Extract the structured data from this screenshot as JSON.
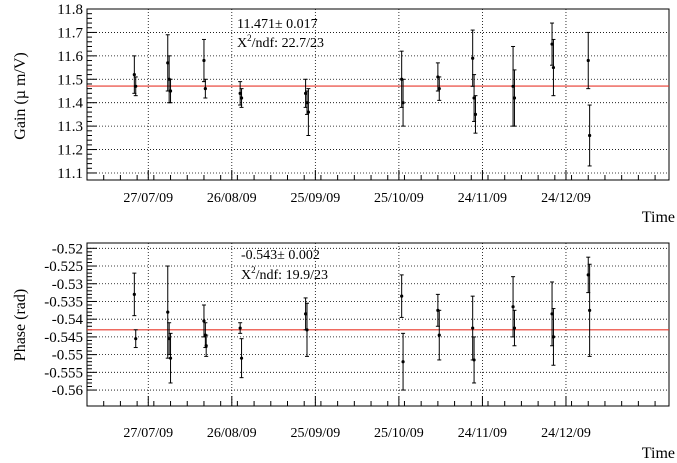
{
  "chart_data": [
    {
      "type": "scatter",
      "ylabel": "Gain (µ m/V)",
      "xlabel": "Time",
      "ylim": [
        11.07,
        11.8
      ],
      "yticks": [
        "11.1",
        "11.2",
        "11.3",
        "11.4",
        "11.5",
        "11.6",
        "11.7",
        "11.8"
      ],
      "xticks": [
        "27/07/09",
        "26/08/09",
        "25/09/09",
        "25/10/09",
        "24/11/09",
        "24/12/09"
      ],
      "xtick_days": [
        0,
        30,
        60,
        90,
        120,
        150
      ],
      "xlim_days": [
        -22,
        187
      ],
      "grid": true,
      "fit": {
        "value": 11.471,
        "label_value": "11.471± 0.017",
        "label_chi_prefix": "X",
        "label_chi_sup": "2",
        "label_chi_rest": "/ndf: 22.7/23",
        "line_color": "#e8382c"
      },
      "points": [
        {
          "x": -5,
          "y": 11.52,
          "err": 0.08
        },
        {
          "x": -4.5,
          "y": 11.47,
          "err": 0.04
        },
        {
          "x": 7,
          "y": 11.57,
          "err": 0.12
        },
        {
          "x": 7.5,
          "y": 11.5,
          "err": 0.1
        },
        {
          "x": 8,
          "y": 11.45,
          "err": 0.05
        },
        {
          "x": 20,
          "y": 11.58,
          "err": 0.09
        },
        {
          "x": 20.5,
          "y": 11.46,
          "err": 0.04
        },
        {
          "x": 33,
          "y": 11.44,
          "err": 0.05
        },
        {
          "x": 33.5,
          "y": 11.42,
          "err": 0.04
        },
        {
          "x": 56.5,
          "y": 11.44,
          "err": 0.06
        },
        {
          "x": 57,
          "y": 11.4,
          "err": 0.05
        },
        {
          "x": 57.5,
          "y": 11.36,
          "err": 0.1
        },
        {
          "x": 91,
          "y": 11.5,
          "err": 0.12
        },
        {
          "x": 91.5,
          "y": 11.4,
          "err": 0.1
        },
        {
          "x": 104,
          "y": 11.51,
          "err": 0.06
        },
        {
          "x": 104.5,
          "y": 11.46,
          "err": 0.05
        },
        {
          "x": 116.5,
          "y": 11.59,
          "err": 0.12
        },
        {
          "x": 117,
          "y": 11.42,
          "err": 0.1
        },
        {
          "x": 117.5,
          "y": 11.35,
          "err": 0.08
        },
        {
          "x": 131,
          "y": 11.47,
          "err": 0.17
        },
        {
          "x": 131.5,
          "y": 11.42,
          "err": 0.12
        },
        {
          "x": 145,
          "y": 11.65,
          "err": 0.09
        },
        {
          "x": 145.5,
          "y": 11.55,
          "err": 0.12
        },
        {
          "x": 158,
          "y": 11.58,
          "err": 0.12
        },
        {
          "x": 158.5,
          "y": 11.26,
          "err": 0.13
        }
      ]
    },
    {
      "type": "scatter",
      "ylabel": "Phase (rad)",
      "xlabel": "Time",
      "ylim": [
        -0.5645,
        -0.5185
      ],
      "yticks": [
        "-0.52",
        "-0.525",
        "-0.53",
        "-0.535",
        "-0.54",
        "-0.545",
        "-0.55",
        "-0.555",
        "-0.56"
      ],
      "xticks": [
        "27/07/09",
        "26/08/09",
        "25/09/09",
        "25/10/09",
        "24/11/09",
        "24/12/09"
      ],
      "xtick_days": [
        0,
        30,
        60,
        90,
        120,
        150
      ],
      "xlim_days": [
        -22,
        187
      ],
      "grid": true,
      "fit": {
        "value": -0.543,
        "label_value": "-0.543± 0.002",
        "label_chi_prefix": "X",
        "label_chi_sup": "2",
        "label_chi_rest": "/ndf: 19.9/23",
        "line_color": "#e8382c"
      },
      "points": [
        {
          "x": -5,
          "y": -0.533,
          "err": 0.006
        },
        {
          "x": -4.5,
          "y": -0.5455,
          "err": 0.0025
        },
        {
          "x": 7,
          "y": -0.538,
          "err": 0.013
        },
        {
          "x": 7.5,
          "y": -0.5455,
          "err": 0.0045
        },
        {
          "x": 8,
          "y": -0.551,
          "err": 0.007
        },
        {
          "x": 20,
          "y": -0.5405,
          "err": 0.0045
        },
        {
          "x": 20.5,
          "y": -0.5445,
          "err": 0.0035
        },
        {
          "x": 20.8,
          "y": -0.5475,
          "err": 0.003
        },
        {
          "x": 33,
          "y": -0.5425,
          "err": 0.0015
        },
        {
          "x": 33.5,
          "y": -0.551,
          "err": 0.0055
        },
        {
          "x": 56.5,
          "y": -0.5385,
          "err": 0.0045
        },
        {
          "x": 57,
          "y": -0.543,
          "err": 0.0075
        },
        {
          "x": 91,
          "y": -0.5335,
          "err": 0.006
        },
        {
          "x": 91.5,
          "y": -0.552,
          "err": 0.008
        },
        {
          "x": 104,
          "y": -0.5375,
          "err": 0.0045
        },
        {
          "x": 104.5,
          "y": -0.5445,
          "err": 0.007
        },
        {
          "x": 116.5,
          "y": -0.5425,
          "err": 0.009
        },
        {
          "x": 117,
          "y": -0.5515,
          "err": 0.0065
        },
        {
          "x": 131,
          "y": -0.5365,
          "err": 0.0085
        },
        {
          "x": 131.5,
          "y": -0.5425,
          "err": 0.005
        },
        {
          "x": 145,
          "y": -0.5385,
          "err": 0.009
        },
        {
          "x": 145.5,
          "y": -0.545,
          "err": 0.008
        },
        {
          "x": 158,
          "y": -0.5275,
          "err": 0.005
        },
        {
          "x": 158.5,
          "y": -0.5375,
          "err": 0.013
        }
      ]
    }
  ]
}
